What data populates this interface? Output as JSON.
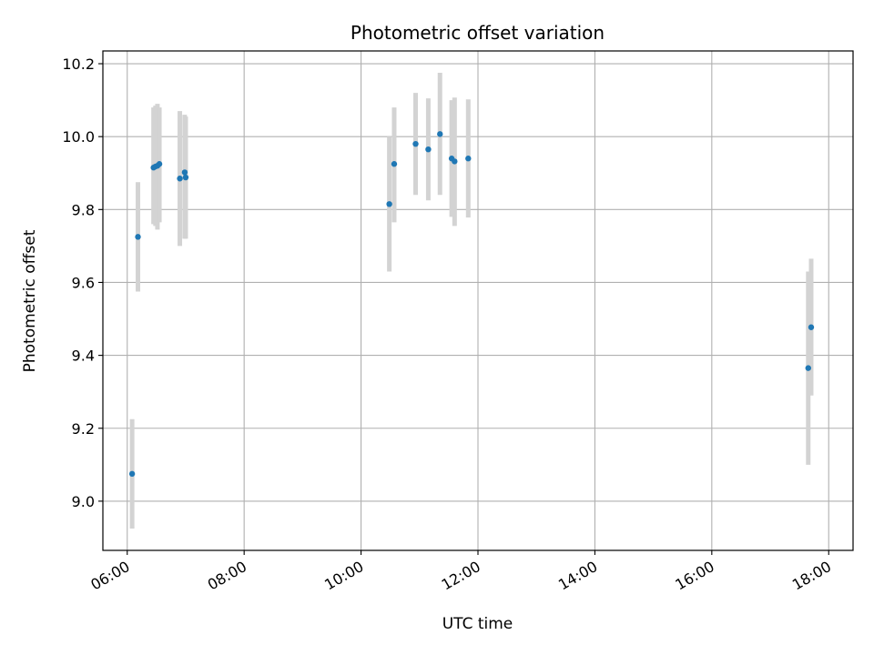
{
  "chart_data": {
    "type": "scatter",
    "title": "Photometric offset variation",
    "xlabel": "UTC time",
    "ylabel": "Photometric offset",
    "x_axis": "time",
    "xlim": [
      "05:35",
      "18:25"
    ],
    "ylim": [
      8.865,
      10.235
    ],
    "grid": true,
    "x_ticks": [
      "06:00",
      "08:00",
      "10:00",
      "12:00",
      "14:00",
      "16:00",
      "18:00"
    ],
    "y_ticks": [
      9.0,
      9.2,
      9.4,
      9.6,
      9.8,
      10.0,
      10.2
    ],
    "y_tick_labels": [
      "9.0",
      "9.2",
      "9.4",
      "9.6",
      "9.8",
      "10.0",
      "10.2"
    ],
    "colors": {
      "point": "#1f77b4",
      "errorbar": "#d3d3d3",
      "grid": "#b0b0b0"
    },
    "points": [
      {
        "x": "06:05",
        "y": 9.075,
        "low": 8.925,
        "high": 9.225
      },
      {
        "x": "06:11",
        "y": 9.725,
        "low": 9.575,
        "high": 9.875
      },
      {
        "x": "06:27",
        "y": 9.915,
        "low": 9.76,
        "high": 10.08
      },
      {
        "x": "06:29",
        "y": 9.918,
        "low": 9.755,
        "high": 10.085
      },
      {
        "x": "06:31",
        "y": 9.92,
        "low": 9.745,
        "high": 10.09
      },
      {
        "x": "06:33",
        "y": 9.925,
        "low": 9.765,
        "high": 10.08
      },
      {
        "x": "06:54",
        "y": 9.885,
        "low": 9.7,
        "high": 10.07
      },
      {
        "x": "06:59",
        "y": 9.902,
        "low": 9.72,
        "high": 10.06
      },
      {
        "x": "07:00",
        "y": 9.888,
        "low": 9.72,
        "high": 10.055
      },
      {
        "x": "10:29",
        "y": 9.815,
        "low": 9.63,
        "high": 10.0
      },
      {
        "x": "10:34",
        "y": 9.925,
        "low": 9.765,
        "high": 10.08
      },
      {
        "x": "10:56",
        "y": 9.98,
        "low": 9.84,
        "high": 10.12
      },
      {
        "x": "11:09",
        "y": 9.965,
        "low": 9.825,
        "high": 10.105
      },
      {
        "x": "11:21",
        "y": 10.007,
        "low": 9.84,
        "high": 10.175
      },
      {
        "x": "11:33",
        "y": 9.94,
        "low": 9.78,
        "high": 10.1
      },
      {
        "x": "11:36",
        "y": 9.932,
        "low": 9.755,
        "high": 10.107
      },
      {
        "x": "11:50",
        "y": 9.94,
        "low": 9.778,
        "high": 10.102
      },
      {
        "x": "17:39",
        "y": 9.365,
        "low": 9.1,
        "high": 9.63
      },
      {
        "x": "17:42",
        "y": 9.477,
        "low": 9.29,
        "high": 9.665
      }
    ]
  }
}
